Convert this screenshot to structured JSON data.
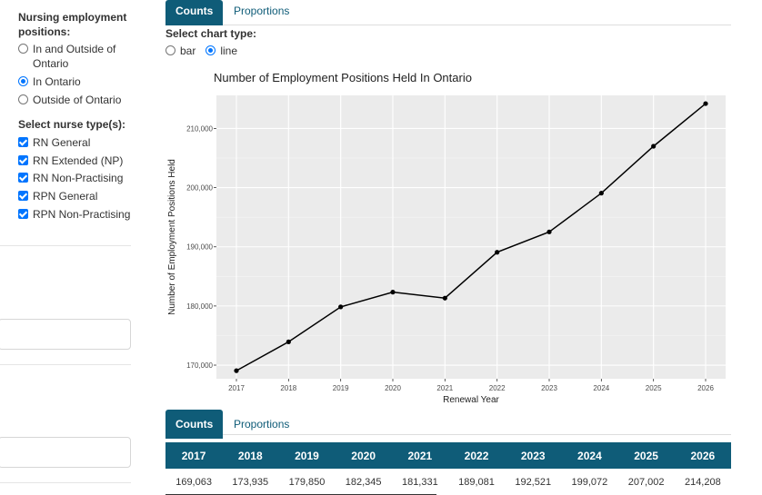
{
  "sidebar": {
    "employment_label": "Nursing employment positions:",
    "employment_options": [
      {
        "label": "In and Outside of Ontario",
        "selected": false
      },
      {
        "label": "In Ontario",
        "selected": true
      },
      {
        "label": "Outside of Ontario",
        "selected": false
      }
    ],
    "nurse_type_label": "Select nurse type(s):",
    "nurse_types": [
      {
        "label": "RN General",
        "checked": true
      },
      {
        "label": "RN Extended (NP)",
        "checked": true
      },
      {
        "label": "RN Non-Practising",
        "checked": true
      },
      {
        "label": "RPN General",
        "checked": true
      },
      {
        "label": "RPN Non-Practising",
        "checked": true
      }
    ]
  },
  "tabs_top": [
    {
      "label": "Counts",
      "active": true
    },
    {
      "label": "Proportions",
      "active": false
    }
  ],
  "chart_type": {
    "label": "Select chart type:",
    "options": [
      {
        "label": "bar",
        "selected": false
      },
      {
        "label": "line",
        "selected": true
      }
    ]
  },
  "chart_data": {
    "type": "line",
    "title": "Number of Employment Positions Held In Ontario",
    "xlabel": "Renewal Year",
    "ylabel": "Number of Employment Positions Held",
    "x": [
      "2017",
      "2018",
      "2019",
      "2020",
      "2021",
      "2022",
      "2023",
      "2024",
      "2025",
      "2026"
    ],
    "values": [
      169063,
      173935,
      179850,
      182345,
      181331,
      189081,
      192521,
      199072,
      207002,
      214208
    ],
    "yticks": [
      170000,
      180000,
      190000,
      200000,
      210000
    ],
    "ytick_labels": [
      "170,000",
      "180,000",
      "190,000",
      "200,000",
      "210,000"
    ],
    "ylim": [
      167700,
      215600
    ],
    "grid": true,
    "background": "#ebebeb",
    "line_color": "#000000"
  },
  "tabs_bottom": [
    {
      "label": "Counts",
      "active": true
    },
    {
      "label": "Proportions",
      "active": false
    }
  ],
  "table": {
    "headers": [
      "2017",
      "2018",
      "2019",
      "2020",
      "2021",
      "2022",
      "2023",
      "2024",
      "2025",
      "2026"
    ],
    "row": [
      "169,063",
      "173,935",
      "179,850",
      "182,345",
      "181,331",
      "189,081",
      "192,521",
      "199,072",
      "207,002",
      "214,208"
    ]
  },
  "colors": {
    "accent": "#0f5c78",
    "control": "#0075ff"
  }
}
